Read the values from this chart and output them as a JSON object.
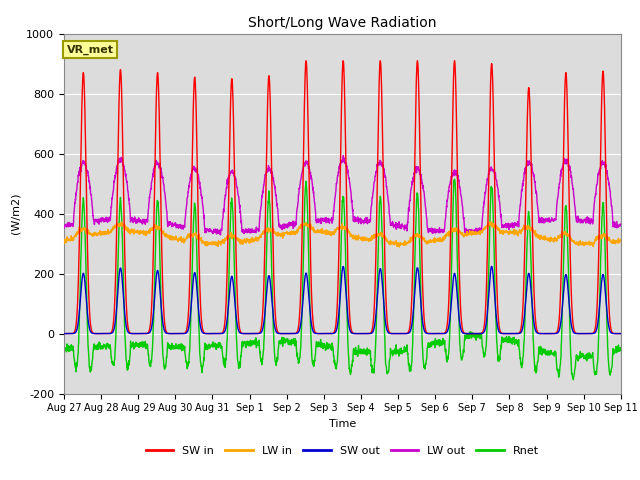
{
  "title": "Short/Long Wave Radiation",
  "xlabel": "Time",
  "ylabel": "(W/m2)",
  "ylim": [
    -200,
    1000
  ],
  "annotation": "VR_met",
  "background_color": "#dcdcdc",
  "fig_background": "#ffffff",
  "legend_entries": [
    "SW in",
    "LW in",
    "SW out",
    "LW out",
    "Rnet"
  ],
  "line_colors": {
    "SW in": "#ff0000",
    "LW in": "#ffa500",
    "SW out": "#0000cc",
    "LW out": "#cc00cc",
    "Rnet": "#00cc00"
  },
  "x_tick_labels": [
    "Aug 27",
    "Aug 28",
    "Aug 29",
    "Aug 30",
    "Aug 31",
    "Sep 1",
    "Sep 2",
    "Sep 3",
    "Sep 4",
    "Sep 5",
    "Sep 6",
    "Sep 7",
    "Sep 8",
    "Sep 9",
    "Sep 10",
    "Sep 11"
  ],
  "num_days": 15,
  "seed": 42,
  "hours_per_day": 24,
  "pts_per_hour": 6
}
